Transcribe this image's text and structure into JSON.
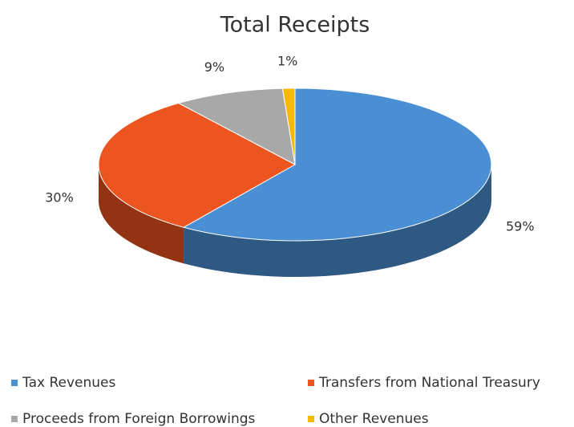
{
  "chart_data": {
    "type": "pie",
    "title": "Total Receipts",
    "categories": [
      "Tax Revenues",
      "Transfers from National Treasury",
      "Proceeds from Foreign Borrowings",
      "Other Revenues"
    ],
    "values": [
      59,
      30,
      9,
      1
    ],
    "value_labels": [
      "59%",
      "30%",
      "9%",
      "1%"
    ],
    "colors": [
      "#4a8fd4",
      "#ec5420",
      "#a8a8a8",
      "#f7b900"
    ],
    "legend": "bottom"
  }
}
